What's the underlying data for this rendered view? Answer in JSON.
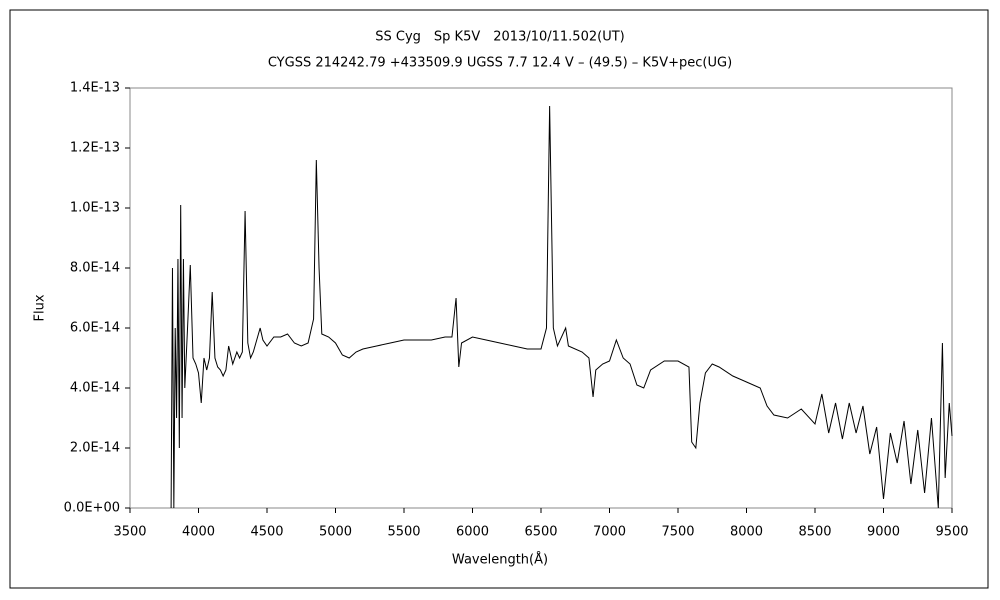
{
  "chart_data": {
    "type": "line",
    "title": "SS Cyg　Sp K5V　2013/10/11.502(UT)",
    "subtitle": "CYGSS 214242.79 +433509.9 UGSS 7.7 12.4 V – (49.5) – K5V+pec(UG)",
    "x_label": "Wavelength(Å)",
    "y_label": "Flux",
    "xlim": [
      3500,
      9500
    ],
    "xticks": [
      3500,
      4000,
      4500,
      5000,
      5500,
      6000,
      6500,
      7000,
      7500,
      8000,
      8500,
      9000,
      9500
    ],
    "ylim": [
      0,
      1.4e-13
    ],
    "yticks": [
      {
        "value": 0,
        "label": "0.0E+00"
      },
      {
        "value": 2e-14,
        "label": "2.0E-14"
      },
      {
        "value": 4e-14,
        "label": "4.0E-14"
      },
      {
        "value": 6e-14,
        "label": "6.0E-14"
      },
      {
        "value": 8e-14,
        "label": "8.0E-14"
      },
      {
        "value": 1e-13,
        "label": "1.0E-13"
      },
      {
        "value": 1.2e-13,
        "label": "1.2E-13"
      },
      {
        "value": 1.4e-13,
        "label": "1.4E-13"
      }
    ],
    "grid": false,
    "series": [
      {
        "color": "#000000",
        "x": [
          3800,
          3810,
          3820,
          3830,
          3840,
          3850,
          3860,
          3870,
          3880,
          3890,
          3900,
          3920,
          3940,
          3960,
          3980,
          4000,
          4020,
          4040,
          4060,
          4080,
          4100,
          4120,
          4140,
          4160,
          4180,
          4200,
          4220,
          4250,
          4280,
          4300,
          4320,
          4340,
          4360,
          4380,
          4400,
          4450,
          4470,
          4500,
          4550,
          4600,
          4650,
          4700,
          4750,
          4800,
          4840,
          4860,
          4880,
          4900,
          4950,
          5000,
          5050,
          5100,
          5150,
          5200,
          5300,
          5400,
          5500,
          5600,
          5700,
          5800,
          5850,
          5880,
          5900,
          5920,
          6000,
          6100,
          6200,
          6300,
          6400,
          6500,
          6540,
          6563,
          6590,
          6620,
          6680,
          6700,
          6800,
          6850,
          6880,
          6900,
          6950,
          7000,
          7050,
          7100,
          7150,
          7200,
          7250,
          7300,
          7400,
          7500,
          7580,
          7600,
          7630,
          7660,
          7700,
          7750,
          7800,
          7900,
          8000,
          8100,
          8150,
          8200,
          8300,
          8400,
          8500,
          8550,
          8600,
          8650,
          8700,
          8750,
          8800,
          8850,
          8900,
          8950,
          9000,
          9050,
          9100,
          9150,
          9200,
          9250,
          9300,
          9350,
          9400,
          9430,
          9450,
          9480,
          9500
        ],
        "values": [
          0,
          8e-14,
          0,
          6e-14,
          3e-14,
          8.3e-14,
          2e-14,
          1.01e-13,
          3e-14,
          8.3e-14,
          4e-14,
          6e-14,
          8.1e-14,
          5e-14,
          4.8e-14,
          4.5e-14,
          3.5e-14,
          5e-14,
          4.6e-14,
          5e-14,
          7.2e-14,
          5e-14,
          4.7e-14,
          4.6e-14,
          4.4e-14,
          4.6e-14,
          5.4e-14,
          4.8e-14,
          5.2e-14,
          5e-14,
          5.2e-14,
          9.9e-14,
          5.5e-14,
          5e-14,
          5.2e-14,
          6e-14,
          5.6e-14,
          5.4e-14,
          5.7e-14,
          5.7e-14,
          5.8e-14,
          5.5e-14,
          5.4e-14,
          5.5e-14,
          6.3e-14,
          1.16e-13,
          8e-14,
          5.8e-14,
          5.7e-14,
          5.5e-14,
          5.1e-14,
          5e-14,
          5.2e-14,
          5.3e-14,
          5.4e-14,
          5.5e-14,
          5.6e-14,
          5.6e-14,
          5.6e-14,
          5.7e-14,
          5.7e-14,
          7e-14,
          4.7e-14,
          5.5e-14,
          5.7e-14,
          5.6e-14,
          5.5e-14,
          5.4e-14,
          5.3e-14,
          5.3e-14,
          6e-14,
          1.34e-13,
          6e-14,
          5.4e-14,
          6e-14,
          5.4e-14,
          5.2e-14,
          5e-14,
          3.7e-14,
          4.6e-14,
          4.8e-14,
          4.9e-14,
          5.6e-14,
          5e-14,
          4.8e-14,
          4.1e-14,
          4e-14,
          4.6e-14,
          4.9e-14,
          4.9e-14,
          4.7e-14,
          2.2e-14,
          2e-14,
          3.5e-14,
          4.5e-14,
          4.8e-14,
          4.7e-14,
          4.4e-14,
          4.2e-14,
          4e-14,
          3.4e-14,
          3.1e-14,
          3e-14,
          3.3e-14,
          2.8e-14,
          3.8e-14,
          2.5e-14,
          3.5e-14,
          2.3e-14,
          3.5e-14,
          2.5e-14,
          3.4e-14,
          1.8e-14,
          2.7e-14,
          3e-15,
          2.5e-14,
          1.5e-14,
          2.9e-14,
          8e-15,
          2.6e-14,
          5e-15,
          3e-14,
          0,
          5.5e-14,
          1e-14,
          3.5e-14,
          2.4e-14
        ]
      }
    ]
  }
}
